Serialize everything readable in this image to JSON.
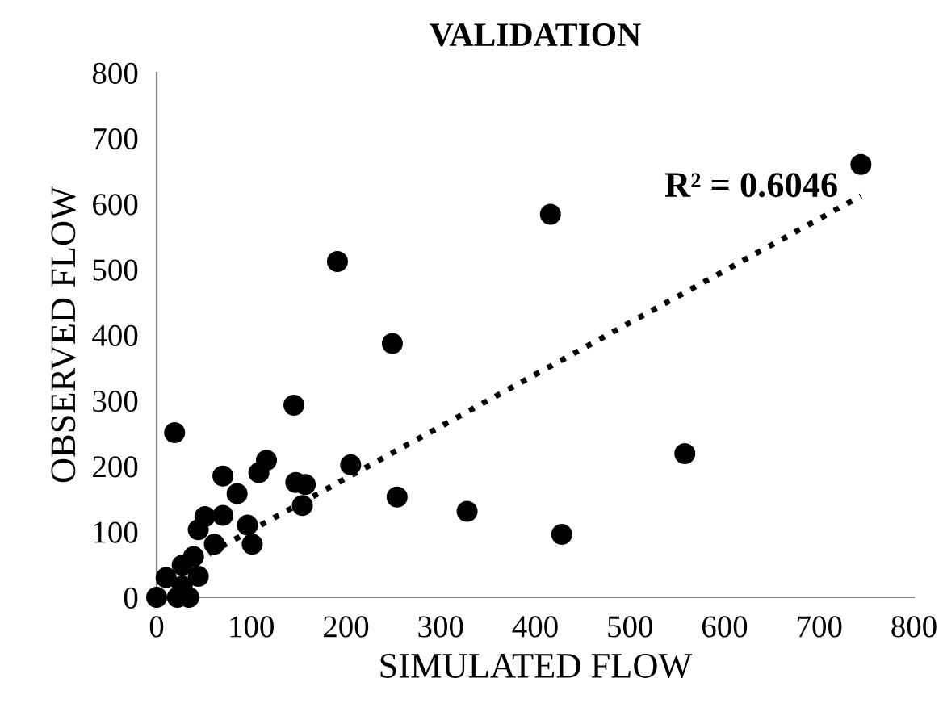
{
  "chart_data": {
    "type": "scatter",
    "title": "VALIDATION",
    "xlabel": "SIMULATED FLOW",
    "ylabel": "OBSERVED FLOW",
    "xlim": [
      0,
      800
    ],
    "xticks": [
      0,
      100,
      200,
      300,
      400,
      500,
      600,
      700,
      800
    ],
    "ylim": [
      0,
      800
    ],
    "yticks": [
      0,
      100,
      200,
      300,
      400,
      500,
      600,
      700,
      800
    ],
    "grid": false,
    "legend": false,
    "annotations": [
      "R² = 0.6046"
    ],
    "series": [
      {
        "color": "#000000",
        "marker": "circle",
        "x": [
          744,
          416,
          191,
          249,
          145,
          558,
          205,
          254,
          328,
          428,
          108,
          147,
          157,
          154,
          96,
          101,
          19,
          116,
          70,
          85,
          51,
          70,
          44,
          61,
          39,
          27,
          10,
          27,
          22,
          44,
          0,
          34
        ],
        "values": [
          660,
          584,
          512,
          387,
          293,
          219,
          202,
          153,
          131,
          96,
          190,
          175,
          172,
          140,
          110,
          81,
          251,
          209,
          185,
          158,
          123,
          125,
          103,
          81,
          62,
          49,
          30,
          17,
          0,
          32,
          0,
          0
        ]
      },
      {
        "type": "line",
        "color": "#000000",
        "line_style": "dotted",
        "x": [
          0,
          744
        ],
        "values": [
          23,
          612
        ]
      }
    ]
  }
}
